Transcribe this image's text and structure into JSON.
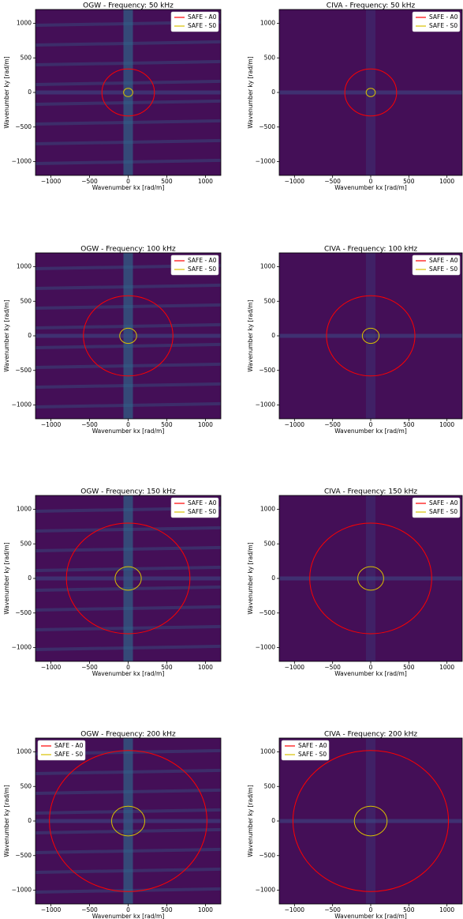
{
  "chart_data": [
    {
      "type": "heatmap",
      "title": "OGW - Frequency: 50 kHz",
      "xlabel": "Wavenumber kx [rad/m]",
      "ylabel": "Wavenumber ky [rad/m]",
      "xlim": [
        -1200,
        1200
      ],
      "ylim": [
        -1200,
        1200
      ],
      "xticks": [
        {
          "value": -1000,
          "label": "−1000"
        },
        {
          "value": -500,
          "label": "−500"
        },
        0,
        500,
        1000
      ],
      "yticks": [
        {
          "value": -1000,
          "label": "−1000"
        },
        {
          "value": -500,
          "label": "−500"
        },
        0,
        500,
        1000
      ],
      "series": [
        {
          "name": "SAFE - A0",
          "color": "#ff0000",
          "radius": 340
        },
        {
          "name": "SAFE - S0",
          "color": "#d9c000",
          "radius": 60
        }
      ],
      "legend": "upper right"
    },
    {
      "type": "heatmap",
      "title": "CIVA - Frequency: 50 kHz",
      "xlabel": "Wavenumber kx [rad/m]",
      "ylabel": "Wavenumber ky [rad/m]",
      "xlim": [
        -1200,
        1200
      ],
      "ylim": [
        -1200,
        1200
      ],
      "xticks": [
        {
          "value": -1000,
          "label": "−1000"
        },
        {
          "value": -500,
          "label": "−500"
        },
        0,
        500,
        1000
      ],
      "yticks": [
        {
          "value": -1000,
          "label": "−1000"
        },
        {
          "value": -500,
          "label": "−500"
        },
        0,
        500,
        1000
      ],
      "series": [
        {
          "name": "SAFE - A0",
          "color": "#ff0000",
          "radius": 340
        },
        {
          "name": "SAFE - S0",
          "color": "#d9c000",
          "radius": 60
        }
      ],
      "legend": "upper right"
    },
    {
      "type": "heatmap",
      "title": "OGW - Frequency: 100 kHz",
      "xlabel": "Wavenumber kx [rad/m]",
      "ylabel": "Wavenumber ky [rad/m]",
      "xlim": [
        -1200,
        1200
      ],
      "ylim": [
        -1200,
        1200
      ],
      "xticks": [
        {
          "value": -1000,
          "label": "−1000"
        },
        {
          "value": -500,
          "label": "−500"
        },
        0,
        500,
        1000
      ],
      "yticks": [
        {
          "value": -1000,
          "label": "−1000"
        },
        {
          "value": -500,
          "label": "−500"
        },
        0,
        500,
        1000
      ],
      "series": [
        {
          "name": "SAFE - A0",
          "color": "#ff0000",
          "radius": 580
        },
        {
          "name": "SAFE - S0",
          "color": "#d9c000",
          "radius": 110
        }
      ],
      "legend": "upper right"
    },
    {
      "type": "heatmap",
      "title": "CIVA - Frequency: 100 kHz",
      "xlabel": "Wavenumber kx [rad/m]",
      "ylabel": "Wavenumber ky [rad/m]",
      "xlim": [
        -1200,
        1200
      ],
      "ylim": [
        -1200,
        1200
      ],
      "xticks": [
        {
          "value": -1000,
          "label": "−1000"
        },
        {
          "value": -500,
          "label": "−500"
        },
        0,
        500,
        1000
      ],
      "yticks": [
        {
          "value": -1000,
          "label": "−1000"
        },
        {
          "value": -500,
          "label": "−500"
        },
        0,
        500,
        1000
      ],
      "series": [
        {
          "name": "SAFE - A0",
          "color": "#ff0000",
          "radius": 580
        },
        {
          "name": "SAFE - S0",
          "color": "#d9c000",
          "radius": 110
        }
      ],
      "legend": "upper right"
    },
    {
      "type": "heatmap",
      "title": "OGW - Frequency: 150 kHz",
      "xlabel": "Wavenumber kx [rad/m]",
      "ylabel": "Wavenumber ky [rad/m]",
      "xlim": [
        -1200,
        1200
      ],
      "ylim": [
        -1200,
        1200
      ],
      "xticks": [
        {
          "value": -1000,
          "label": "−1000"
        },
        {
          "value": -500,
          "label": "−500"
        },
        0,
        500,
        1000
      ],
      "yticks": [
        {
          "value": -1000,
          "label": "−1000"
        },
        {
          "value": -500,
          "label": "−500"
        },
        0,
        500,
        1000
      ],
      "series": [
        {
          "name": "SAFE - A0",
          "color": "#ff0000",
          "radius": 800
        },
        {
          "name": "SAFE - S0",
          "color": "#d9c000",
          "radius": 170
        }
      ],
      "legend": "upper right"
    },
    {
      "type": "heatmap",
      "title": "CIVA - Frequency: 150 kHz",
      "xlabel": "Wavenumber kx [rad/m]",
      "ylabel": "Wavenumber ky [rad/m]",
      "xlim": [
        -1200,
        1200
      ],
      "ylim": [
        -1200,
        1200
      ],
      "xticks": [
        {
          "value": -1000,
          "label": "−1000"
        },
        {
          "value": -500,
          "label": "−500"
        },
        0,
        500,
        1000
      ],
      "yticks": [
        {
          "value": -1000,
          "label": "−1000"
        },
        {
          "value": -500,
          "label": "−500"
        },
        0,
        500,
        1000
      ],
      "series": [
        {
          "name": "SAFE - A0",
          "color": "#ff0000",
          "radius": 800
        },
        {
          "name": "SAFE - S0",
          "color": "#d9c000",
          "radius": 170
        }
      ],
      "legend": "upper right"
    },
    {
      "type": "heatmap",
      "title": "OGW - Frequency: 200 kHz",
      "xlabel": "Wavenumber kx [rad/m]",
      "ylabel": "Wavenumber ky [rad/m]",
      "xlim": [
        -1200,
        1200
      ],
      "ylim": [
        -1200,
        1200
      ],
      "xticks": [
        {
          "value": -1000,
          "label": "−1000"
        },
        {
          "value": -500,
          "label": "−500"
        },
        0,
        500,
        1000
      ],
      "yticks": [
        {
          "value": -1000,
          "label": "−1000"
        },
        {
          "value": -500,
          "label": "−500"
        },
        0,
        500,
        1000
      ],
      "series": [
        {
          "name": "SAFE - A0",
          "color": "#ff0000",
          "radius": 1020
        },
        {
          "name": "SAFE - S0",
          "color": "#d9c000",
          "radius": 215
        }
      ],
      "legend": "upper left"
    },
    {
      "type": "heatmap",
      "title": "CIVA - Frequency: 200 kHz",
      "xlabel": "Wavenumber kx [rad/m]",
      "ylabel": "Wavenumber ky [rad/m]",
      "xlim": [
        -1200,
        1200
      ],
      "ylim": [
        -1200,
        1200
      ],
      "xticks": [
        {
          "value": -1000,
          "label": "−1000"
        },
        {
          "value": -500,
          "label": "−500"
        },
        0,
        500,
        1000
      ],
      "yticks": [
        {
          "value": -1000,
          "label": "−1000"
        },
        {
          "value": -500,
          "label": "−500"
        },
        0,
        500,
        1000
      ],
      "series": [
        {
          "name": "SAFE - A0",
          "color": "#ff0000",
          "radius": 1020
        },
        {
          "name": "SAFE - S0",
          "color": "#d9c000",
          "radius": 215
        }
      ],
      "legend": "upper left"
    }
  ]
}
